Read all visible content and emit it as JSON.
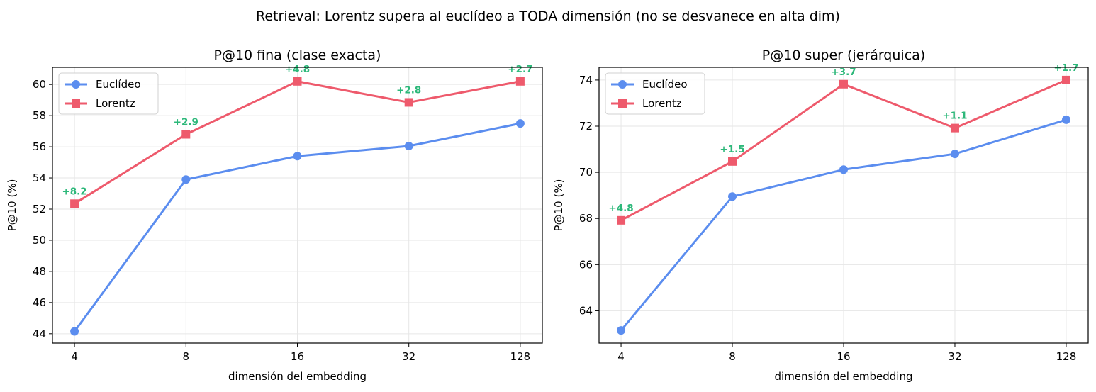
{
  "suptitle": "Retrieval: Lorentz supera al euclídeo a TODA dimensión (no se desvanece en alta dim)",
  "colors": {
    "euclid": "#5b8def",
    "lorentz": "#ee5a6c",
    "delta": "#2db87a",
    "grid": "#e6e6e6"
  },
  "chart_data": [
    {
      "type": "line",
      "title": "P@10 fina (clase exacta)",
      "xlabel": "dimensión del embedding",
      "ylabel": "P@10 (%)",
      "categories": [
        "4",
        "8",
        "16",
        "32",
        "128"
      ],
      "ylim": [
        43.4,
        61.1
      ],
      "yticks": [
        44,
        46,
        48,
        50,
        52,
        54,
        56,
        58,
        60
      ],
      "grid": true,
      "legend": "upper-left",
      "series": [
        {
          "name": "Euclídeo",
          "marker": "circle",
          "values": [
            44.15,
            53.9,
            55.4,
            56.05,
            57.5
          ]
        },
        {
          "name": "Lorentz",
          "marker": "square",
          "values": [
            52.35,
            56.8,
            60.2,
            58.85,
            60.2
          ]
        }
      ],
      "annotations": [
        "+8.2",
        "+2.9",
        "+4.8",
        "+2.8",
        "+2.7"
      ]
    },
    {
      "type": "line",
      "title": "P@10 super (jerárquica)",
      "xlabel": "dimensión del embedding",
      "ylabel": "P@10 (%)",
      "categories": [
        "4",
        "8",
        "16",
        "32",
        "128"
      ],
      "ylim": [
        62.6,
        74.55
      ],
      "yticks": [
        64,
        66,
        68,
        70,
        72,
        74
      ],
      "grid": true,
      "legend": "upper-left",
      "series": [
        {
          "name": "Euclídeo",
          "marker": "circle",
          "values": [
            63.15,
            68.95,
            70.12,
            70.8,
            72.28
          ]
        },
        {
          "name": "Lorentz",
          "marker": "square",
          "values": [
            67.92,
            70.47,
            73.82,
            71.92,
            74.0
          ]
        }
      ],
      "annotations": [
        "+4.8",
        "+1.5",
        "+3.7",
        "+1.1",
        "+1.7"
      ]
    }
  ]
}
